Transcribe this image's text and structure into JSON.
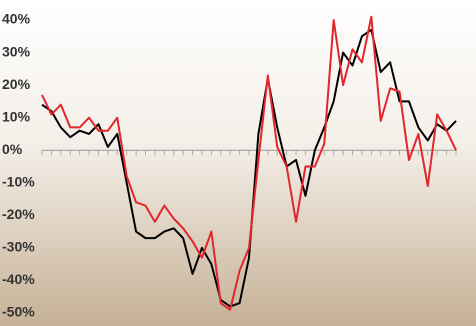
{
  "chart_data": {
    "type": "line",
    "categories": [
      null,
      null,
      null,
      null,
      null,
      null,
      null,
      null,
      null,
      null,
      null,
      null,
      null,
      null,
      null,
      null,
      null,
      null,
      null,
      null,
      null,
      null,
      null,
      null,
      null,
      null,
      null,
      null,
      null,
      null,
      null,
      null,
      null,
      null,
      null,
      null,
      null,
      null,
      null,
      null,
      null,
      null,
      null,
      null,
      null
    ],
    "series": [
      {
        "name": null,
        "color": "#000000",
        "values": [
          14,
          12,
          7,
          4,
          6,
          5,
          8,
          1,
          5,
          -10,
          -25,
          -27,
          -27,
          -25,
          -24,
          -27,
          -38,
          -30,
          -35,
          -46,
          -48,
          -47,
          -33,
          5,
          22,
          7,
          -5,
          -3,
          -14,
          0,
          7,
          15,
          30,
          26,
          35,
          37,
          24,
          27,
          15,
          15,
          7,
          3,
          8,
          6,
          9
        ]
      },
      {
        "name": null,
        "color": "#e3262b",
        "values": [
          17,
          11,
          14,
          7,
          7,
          10,
          6,
          6,
          10,
          -8,
          -16,
          -17,
          -22,
          -17,
          -21,
          -24,
          -28,
          -33,
          -25,
          -47,
          -49,
          -37,
          -30,
          -3,
          23,
          1,
          -5,
          -22,
          -5,
          -5,
          2,
          40,
          20,
          31,
          27,
          41,
          9,
          19,
          18,
          -3,
          5,
          -11,
          11,
          6,
          0
        ]
      }
    ],
    "ylim": [
      -50,
      40
    ],
    "yticks": [
      {
        "value": -50,
        "label": "-50%"
      },
      {
        "value": -40,
        "label": "-40%"
      },
      {
        "value": -30,
        "label": "-30%"
      },
      {
        "value": -20,
        "label": "-20%"
      },
      {
        "value": -10,
        "label": "-10%"
      },
      {
        "value": 0,
        "label": "0%"
      },
      {
        "value": 10,
        "label": "10%"
      },
      {
        "value": 20,
        "label": "20%"
      },
      {
        "value": 30,
        "label": "30%"
      },
      {
        "value": 40,
        "label": "40%"
      }
    ]
  }
}
